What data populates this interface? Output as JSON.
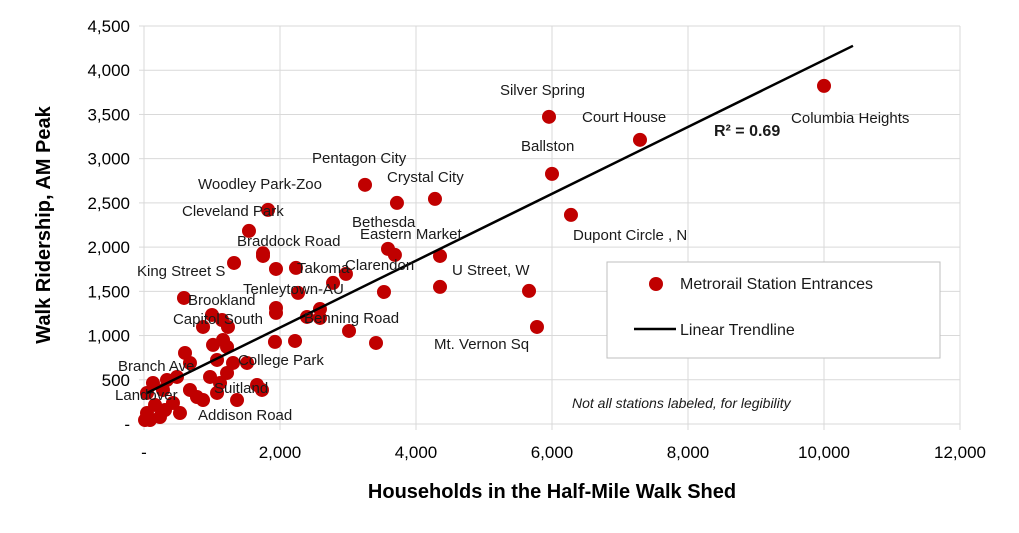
{
  "chart_data": {
    "type": "scatter",
    "xlabel": "Households in the Half-Mile Walk Shed",
    "ylabel": "Walk Ridership, AM Peak",
    "xlim": [
      0,
      12000
    ],
    "ylim": [
      0,
      4500
    ],
    "x_ticks": [
      0,
      2000,
      4000,
      6000,
      8000,
      10000,
      12000
    ],
    "x_tick_labels": [
      "-",
      "2,000",
      "4,000",
      "6,000",
      "8,000",
      "10,000",
      "12,000"
    ],
    "y_ticks": [
      0,
      500,
      1000,
      1500,
      2000,
      2500,
      3000,
      3500,
      4000,
      4500
    ],
    "y_tick_labels": [
      "-",
      "500",
      "1,000",
      "1,500",
      "2,000",
      "2,500",
      "3,000",
      "3,500",
      "4,000",
      "4,500"
    ],
    "grid": true,
    "legend_placement": "right",
    "colors": {
      "points": "#c00000",
      "trendline": "#000000",
      "grid": "#d9d9d9"
    },
    "series": [
      {
        "name": "Metrorail Station Entrances",
        "points": [
          [
            10000,
            3823
          ],
          [
            5956,
            3473
          ],
          [
            7294,
            3213
          ],
          [
            6000,
            2828
          ],
          [
            6279,
            2364
          ],
          [
            5662,
            1505
          ],
          [
            4353,
            1900
          ],
          [
            4353,
            1550
          ],
          [
            5779,
            1097
          ],
          [
            3250,
            2704
          ],
          [
            3720,
            2500
          ],
          [
            4279,
            2545
          ],
          [
            1824,
            2421
          ],
          [
            1544,
            2183
          ],
          [
            3588,
            1980
          ],
          [
            3690,
            1912
          ],
          [
            1750,
            1930
          ],
          [
            1750,
            1900
          ],
          [
            1324,
            1821
          ],
          [
            1941,
            1753
          ],
          [
            2235,
            1765
          ],
          [
            2780,
            1595
          ],
          [
            2970,
            1697
          ],
          [
            2265,
            1482
          ],
          [
            3529,
            1493
          ],
          [
            588,
            1425
          ],
          [
            1941,
            1312
          ],
          [
            1941,
            1256
          ],
          [
            2397,
            1210
          ],
          [
            2588,
            1300
          ],
          [
            2588,
            1199
          ],
          [
            3015,
            1052
          ],
          [
            3412,
            916
          ],
          [
            1000,
            1233
          ],
          [
            868,
            1097
          ],
          [
            1147,
            1176
          ],
          [
            1235,
            1097
          ],
          [
            1015,
            894
          ],
          [
            1162,
            950
          ],
          [
            1221,
            871
          ],
          [
            1926,
            928
          ],
          [
            2221,
            939
          ],
          [
            603,
            803
          ],
          [
            676,
            690
          ],
          [
            1074,
            724
          ],
          [
            1309,
            690
          ],
          [
            1515,
            690
          ],
          [
            971,
            532
          ],
          [
            1221,
            577
          ],
          [
            338,
            498
          ],
          [
            485,
            532
          ],
          [
            132,
            464
          ],
          [
            44,
            351
          ],
          [
            279,
            385
          ],
          [
            676,
            385
          ],
          [
            779,
            305
          ],
          [
            868,
            271
          ],
          [
            1074,
            351
          ],
          [
            1368,
            271
          ],
          [
            1662,
            441
          ],
          [
            1735,
            385
          ],
          [
            529,
            124
          ],
          [
            88,
            45
          ],
          [
            235,
            79
          ],
          [
            44,
            124
          ],
          [
            426,
            238
          ],
          [
            1118,
            464
          ],
          [
            162,
            215
          ],
          [
            309,
            158
          ],
          [
            15,
            45
          ]
        ]
      },
      {
        "name": "Linear Trendline",
        "type": "line",
        "points": [
          [
            44,
            351
          ],
          [
            10426,
            4276
          ]
        ]
      }
    ],
    "annotations": [
      {
        "text": "Silver Spring",
        "x": 5235,
        "y": 3778
      },
      {
        "text": "Court House",
        "x": 6441,
        "y": 3473
      },
      {
        "text": "Columbia Heights",
        "x": 9515,
        "y": 3462
      },
      {
        "text": "Ballston",
        "x": 5544,
        "y": 3145
      },
      {
        "text": "Dupont Circle , N",
        "x": 6309,
        "y": 2138
      },
      {
        "text": "Pentagon City",
        "x": 2471,
        "y": 3009
      },
      {
        "text": "Crystal City",
        "x": 3574,
        "y": 2794
      },
      {
        "text": "Woodley Park-Zoo",
        "x": 794,
        "y": 2715
      },
      {
        "text": "Cleveland Park",
        "x": 559,
        "y": 2410
      },
      {
        "text": "Bethesda",
        "x": 3059,
        "y": 2285
      },
      {
        "text": "Eastern Market",
        "x": 3176,
        "y": 2149
      },
      {
        "text": "Braddock Road",
        "x": 1368,
        "y": 2070
      },
      {
        "text": "King Street S",
        "x": -103,
        "y": 1731
      },
      {
        "text": "Clarendon",
        "x": 2956,
        "y": 1799
      },
      {
        "text": "Takoma",
        "x": 2250,
        "y": 1765
      },
      {
        "text": "U Street, W",
        "x": 4529,
        "y": 1742
      },
      {
        "text": "Tenleytown-AU",
        "x": 1456,
        "y": 1527
      },
      {
        "text": "Brookland",
        "x": 647,
        "y": 1403
      },
      {
        "text": "Capitol South",
        "x": 426,
        "y": 1188
      },
      {
        "text": "Benning Road",
        "x": 2353,
        "y": 1199
      },
      {
        "text": "Mt. Vernon Sq",
        "x": 4265,
        "y": 905
      },
      {
        "text": "College Park",
        "x": 1382,
        "y": 724
      },
      {
        "text": "Branch Ave",
        "x": -382,
        "y": 656
      },
      {
        "text": "Suitland",
        "x": 1029,
        "y": 407
      },
      {
        "text": "Landover",
        "x": -426,
        "y": 328
      },
      {
        "text": "Addison Road",
        "x": 794,
        "y": 102
      }
    ],
    "r_squared_label": "R² = 0.69",
    "r_squared_position": {
      "x": 8382,
      "y": 3303
    },
    "note": "Not all stations labeled, for legibility",
    "legend": [
      "Metrorail Station Entrances",
      "Linear Trendline"
    ]
  }
}
